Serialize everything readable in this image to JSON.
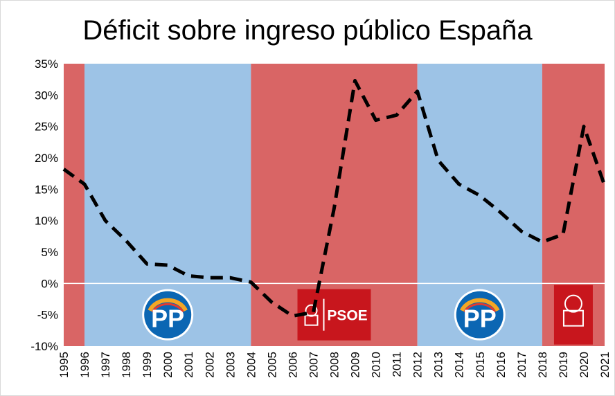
{
  "chart_data": {
    "type": "line",
    "title": "Déficit sobre ingreso público España",
    "xlabel": "",
    "ylabel": "",
    "ylim": [
      -10,
      35
    ],
    "ytick_values": [
      -10,
      -5,
      0,
      5,
      10,
      15,
      20,
      25,
      30,
      35
    ],
    "ytick_labels": [
      "-10%",
      "-5%",
      "0%",
      "5%",
      "10%",
      "15%",
      "20%",
      "25%",
      "30%",
      "35%"
    ],
    "categories": [
      "1995",
      "1996",
      "1997",
      "1998",
      "1999",
      "2000",
      "2001",
      "2002",
      "2003",
      "2004",
      "2005",
      "2006",
      "2007",
      "2008",
      "2009",
      "2010",
      "2011",
      "2012",
      "2013",
      "2014",
      "2015",
      "2016",
      "2017",
      "2018",
      "2019",
      "2020",
      "2021"
    ],
    "series": [
      {
        "name": "Déficit sobre ingreso público",
        "line_style": "dashed",
        "color": "#000000",
        "values": [
          18.2,
          15.8,
          10.0,
          6.8,
          3.1,
          2.9,
          1.2,
          0.9,
          0.9,
          0.2,
          -3.0,
          -5.2,
          -4.6,
          12.0,
          32.3,
          26.0,
          26.8,
          30.6,
          19.6,
          15.8,
          14.0,
          11.3,
          8.3,
          6.6,
          7.8,
          25.0,
          15.6
        ]
      }
    ],
    "government_periods": [
      {
        "party": "PSOE",
        "start": "1995",
        "end": "1996",
        "color": "#d96565"
      },
      {
        "party": "PP",
        "start": "1996",
        "end": "2004",
        "color": "#9dc3e6",
        "logo_text": "PP"
      },
      {
        "party": "PSOE",
        "start": "2004",
        "end": "2012",
        "color": "#d96565",
        "logo_text": "PSOE"
      },
      {
        "party": "PP",
        "start": "2012",
        "end": "2018",
        "color": "#9dc3e6",
        "logo_text": "PP"
      },
      {
        "party": "PSOE",
        "start": "2018",
        "end": "2021",
        "color": "#d96565",
        "logo_text": ""
      }
    ],
    "zero_line_color": "#ffffff",
    "legend": "none",
    "grid": false
  }
}
